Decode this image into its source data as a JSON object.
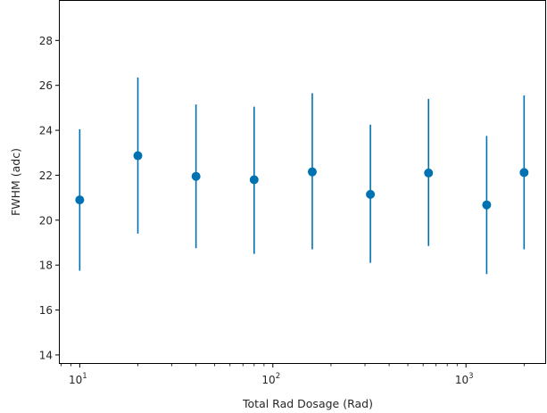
{
  "chart_data": {
    "type": "scatter",
    "title": "",
    "xlabel": "Total Rad Dosage (Rad)",
    "ylabel": "FWHM (adc)",
    "xscale": "log",
    "xlim": [
      7.8,
      2600
    ],
    "ylim": [
      13.6,
      29.8
    ],
    "grid": false,
    "legend": "none",
    "x_ticks": [
      {
        "base": "10",
        "exp": "1",
        "value": 10
      },
      {
        "base": "10",
        "exp": "2",
        "value": 100
      },
      {
        "base": "10",
        "exp": "3",
        "value": 1000
      }
    ],
    "y_ticks": [
      {
        "label": "14",
        "value": 14
      },
      {
        "label": "16",
        "value": 16
      },
      {
        "label": "18",
        "value": 18
      },
      {
        "label": "20",
        "value": 20
      },
      {
        "label": "22",
        "value": 22
      },
      {
        "label": "24",
        "value": 24
      },
      {
        "label": "26",
        "value": 26
      },
      {
        "label": "28",
        "value": 28
      }
    ],
    "color": "#0072b2",
    "points": [
      {
        "x": 10,
        "y": 20.9,
        "yerr_low": 17.75,
        "yerr_high": 24.05
      },
      {
        "x": 20,
        "y": 22.87,
        "yerr_low": 19.4,
        "yerr_high": 26.35
      },
      {
        "x": 40,
        "y": 21.95,
        "yerr_low": 18.75,
        "yerr_high": 25.15
      },
      {
        "x": 80,
        "y": 21.8,
        "yerr_low": 18.5,
        "yerr_high": 25.05
      },
      {
        "x": 160,
        "y": 22.15,
        "yerr_low": 18.7,
        "yerr_high": 25.65
      },
      {
        "x": 320,
        "y": 21.15,
        "yerr_low": 18.1,
        "yerr_high": 24.25
      },
      {
        "x": 640,
        "y": 22.1,
        "yerr_low": 18.85,
        "yerr_high": 25.4
      },
      {
        "x": 1280,
        "y": 20.68,
        "yerr_low": 17.6,
        "yerr_high": 23.75
      },
      {
        "x": 2000,
        "y": 22.12,
        "yerr_low": 18.7,
        "yerr_high": 25.55
      }
    ]
  }
}
